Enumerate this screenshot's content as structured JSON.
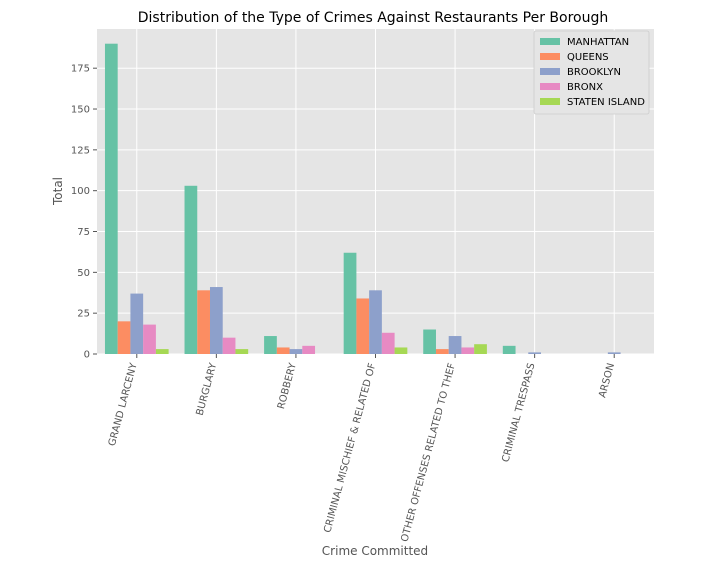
{
  "chart_data": {
    "type": "bar",
    "title": "Distribution of the Type of Crimes Against Restaurants Per Borough",
    "xlabel": "Crime Committed",
    "ylabel": "Total",
    "ylim": [
      0,
      199
    ],
    "yticks": [
      0,
      25,
      50,
      75,
      100,
      125,
      150,
      175
    ],
    "grid": true,
    "legend_position": "top-right",
    "categories": [
      "GRAND LARCENY",
      "BURGLARY",
      "ROBBERY",
      "CRIMINAL MISCHIEF & RELATED OF",
      "OTHER OFFENSES RELATED TO THEF",
      "CRIMINAL TRESPASS",
      "ARSON"
    ],
    "series": [
      {
        "name": "MANHATTAN",
        "color": "#66c2a5",
        "values": [
          190,
          103,
          11,
          62,
          15,
          5,
          0
        ]
      },
      {
        "name": "QUEENS",
        "color": "#fc8d62",
        "values": [
          20,
          39,
          4,
          34,
          3,
          0,
          0
        ]
      },
      {
        "name": "BROOKLYN",
        "color": "#8da0cb",
        "values": [
          37,
          41,
          3,
          39,
          11,
          1,
          1
        ]
      },
      {
        "name": "BRONX",
        "color": "#e78ac3",
        "values": [
          18,
          10,
          5,
          13,
          4,
          0,
          0
        ]
      },
      {
        "name": "STATEN ISLAND",
        "color": "#a6d854",
        "values": [
          3,
          3,
          0,
          4,
          6,
          0,
          0
        ]
      }
    ]
  }
}
